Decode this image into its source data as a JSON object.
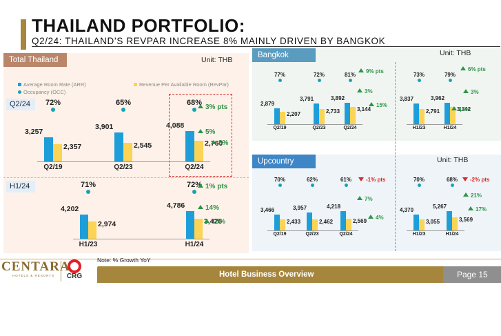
{
  "header": {
    "title": "THAILAND PORTFOLIO:",
    "subtitle": "Q2/24: THAILAND’S REVPAR INCREASE 8% MAINLY DRIVEN BY BANGKOK"
  },
  "colors": {
    "arr": "#1e9ed9",
    "revpar": "#fbd355",
    "occupancy": "#17a3b3",
    "growth_up": "#2f9447",
    "growth_down": "#d62828",
    "gold": "#a6863c",
    "total_thailand_header": "#b9866a",
    "bangkok_header": "#5a9cc0",
    "upcountry_header": "#3e86c6"
  },
  "panels": {
    "total": {
      "label": "Total Thailand",
      "unit": "Unit: THB",
      "legend": {
        "arr": "Average Room Rate (ARR)",
        "revpar": "Revenue Per Available Room (RevPar)",
        "occ": "Occupancy (OCC)"
      },
      "row_q2": "Q2/24",
      "row_h1": "H1/24"
    },
    "bangkok": {
      "label": "Bangkok",
      "unit": "Unit: THB"
    },
    "upcountry": {
      "label": "Upcountry",
      "unit": "Unit: THB"
    }
  },
  "chart_data": [
    {
      "type": "bar",
      "title": "Total Thailand - Q2",
      "categories": [
        "Q2/19",
        "Q2/23",
        "Q2/24"
      ],
      "series": [
        {
          "name": "Average Room Rate (ARR)",
          "values": [
            3257,
            3901,
            4088
          ],
          "labels": [
            "3,257",
            "3,901",
            "4,088"
          ]
        },
        {
          "name": "Revenue Per Available Room (RevPar)",
          "values": [
            2357,
            2545,
            2760
          ],
          "labels": [
            "2,357",
            "2,545",
            "2,760"
          ]
        }
      ],
      "occupancy": [
        "72%",
        "65%",
        "68%"
      ],
      "growth": {
        "occ": "3% pts",
        "arr": "5%",
        "revpar": "8%"
      }
    },
    {
      "type": "bar",
      "title": "Total Thailand - H1",
      "categories": [
        "H1/23",
        "H1/24"
      ],
      "series": [
        {
          "name": "Average Room Rate (ARR)",
          "values": [
            4202,
            4786
          ],
          "labels": [
            "4,202",
            "4,786"
          ]
        },
        {
          "name": "Revenue Per Available Room (RevPar)",
          "values": [
            2974,
            3426
          ],
          "labels": [
            "2,974",
            "3,426"
          ]
        }
      ],
      "occupancy": [
        "71%",
        "72%"
      ],
      "growth": {
        "occ": "1% pts",
        "arr": "14%",
        "revpar": "15%"
      }
    },
    {
      "type": "bar",
      "title": "Bangkok - Quarter",
      "categories": [
        "Q2/19",
        "Q2/23",
        "Q2/24"
      ],
      "series": [
        {
          "name": "Average Room Rate (ARR)",
          "values": [
            2879,
            3791,
            3892
          ],
          "labels": [
            "2,879",
            "3,791",
            "3,892"
          ]
        },
        {
          "name": "Revenue Per Available Room (RevPar)",
          "values": [
            2207,
            2733,
            3144
          ],
          "labels": [
            "2,207",
            "2,733",
            "3,144"
          ]
        }
      ],
      "occupancy": [
        "77%",
        "72%",
        "81%"
      ],
      "growth": {
        "occ": "9% pts",
        "arr": "3%",
        "revpar": "15%"
      }
    },
    {
      "type": "bar",
      "title": "Bangkok - Half Year",
      "categories": [
        "H1/23",
        "H1/24"
      ],
      "series": [
        {
          "name": "Average Room Rate (ARR)",
          "values": [
            3837,
            3962
          ],
          "labels": [
            "3,837",
            "3,962"
          ]
        },
        {
          "name": "Revenue Per Available Room (RevPar)",
          "values": [
            2791,
            3142
          ],
          "labels": [
            "2,791",
            "3,142"
          ]
        }
      ],
      "occupancy": [
        "73%",
        "79%"
      ],
      "growth": {
        "occ": "6% pts",
        "arr": "3%",
        "revpar": "13%"
      }
    },
    {
      "type": "bar",
      "title": "Upcountry - Quarter",
      "categories": [
        "Q2/19",
        "Q2/23",
        "Q2/24"
      ],
      "series": [
        {
          "name": "Average Room Rate (ARR)",
          "values": [
            3466,
            3957,
            4218
          ],
          "labels": [
            "3,466",
            "3,957",
            "4,218"
          ]
        },
        {
          "name": "Revenue Per Available Room (RevPar)",
          "values": [
            2433,
            2462,
            2569
          ],
          "labels": [
            "2,433",
            "2,462",
            "2,569"
          ]
        }
      ],
      "occupancy": [
        "70%",
        "62%",
        "61%"
      ],
      "growth": {
        "occ": "-1% pts",
        "arr": "7%",
        "revpar": "4%"
      }
    },
    {
      "type": "bar",
      "title": "Upcountry - Half Year",
      "categories": [
        "H1/23",
        "H1/24"
      ],
      "series": [
        {
          "name": "Average Room Rate (ARR)",
          "values": [
            4370,
            5267
          ],
          "labels": [
            "4,370",
            "5,267"
          ]
        },
        {
          "name": "Revenue Per Available Room (RevPar)",
          "values": [
            3055,
            3569
          ],
          "labels": [
            "3,055",
            "3,569"
          ]
        }
      ],
      "occupancy": [
        "70%",
        "68%"
      ],
      "growth": {
        "occ": "-2% pts",
        "arr": "21%",
        "revpar": "17%"
      }
    }
  ],
  "footer": {
    "note": "Note: % Growth YoY",
    "section": "Hotel Business Overview",
    "page": "Page 15",
    "logo_main": "CENTARA",
    "logo_sub": "HOTELS & RESORTS",
    "logo_group": "CRG"
  }
}
